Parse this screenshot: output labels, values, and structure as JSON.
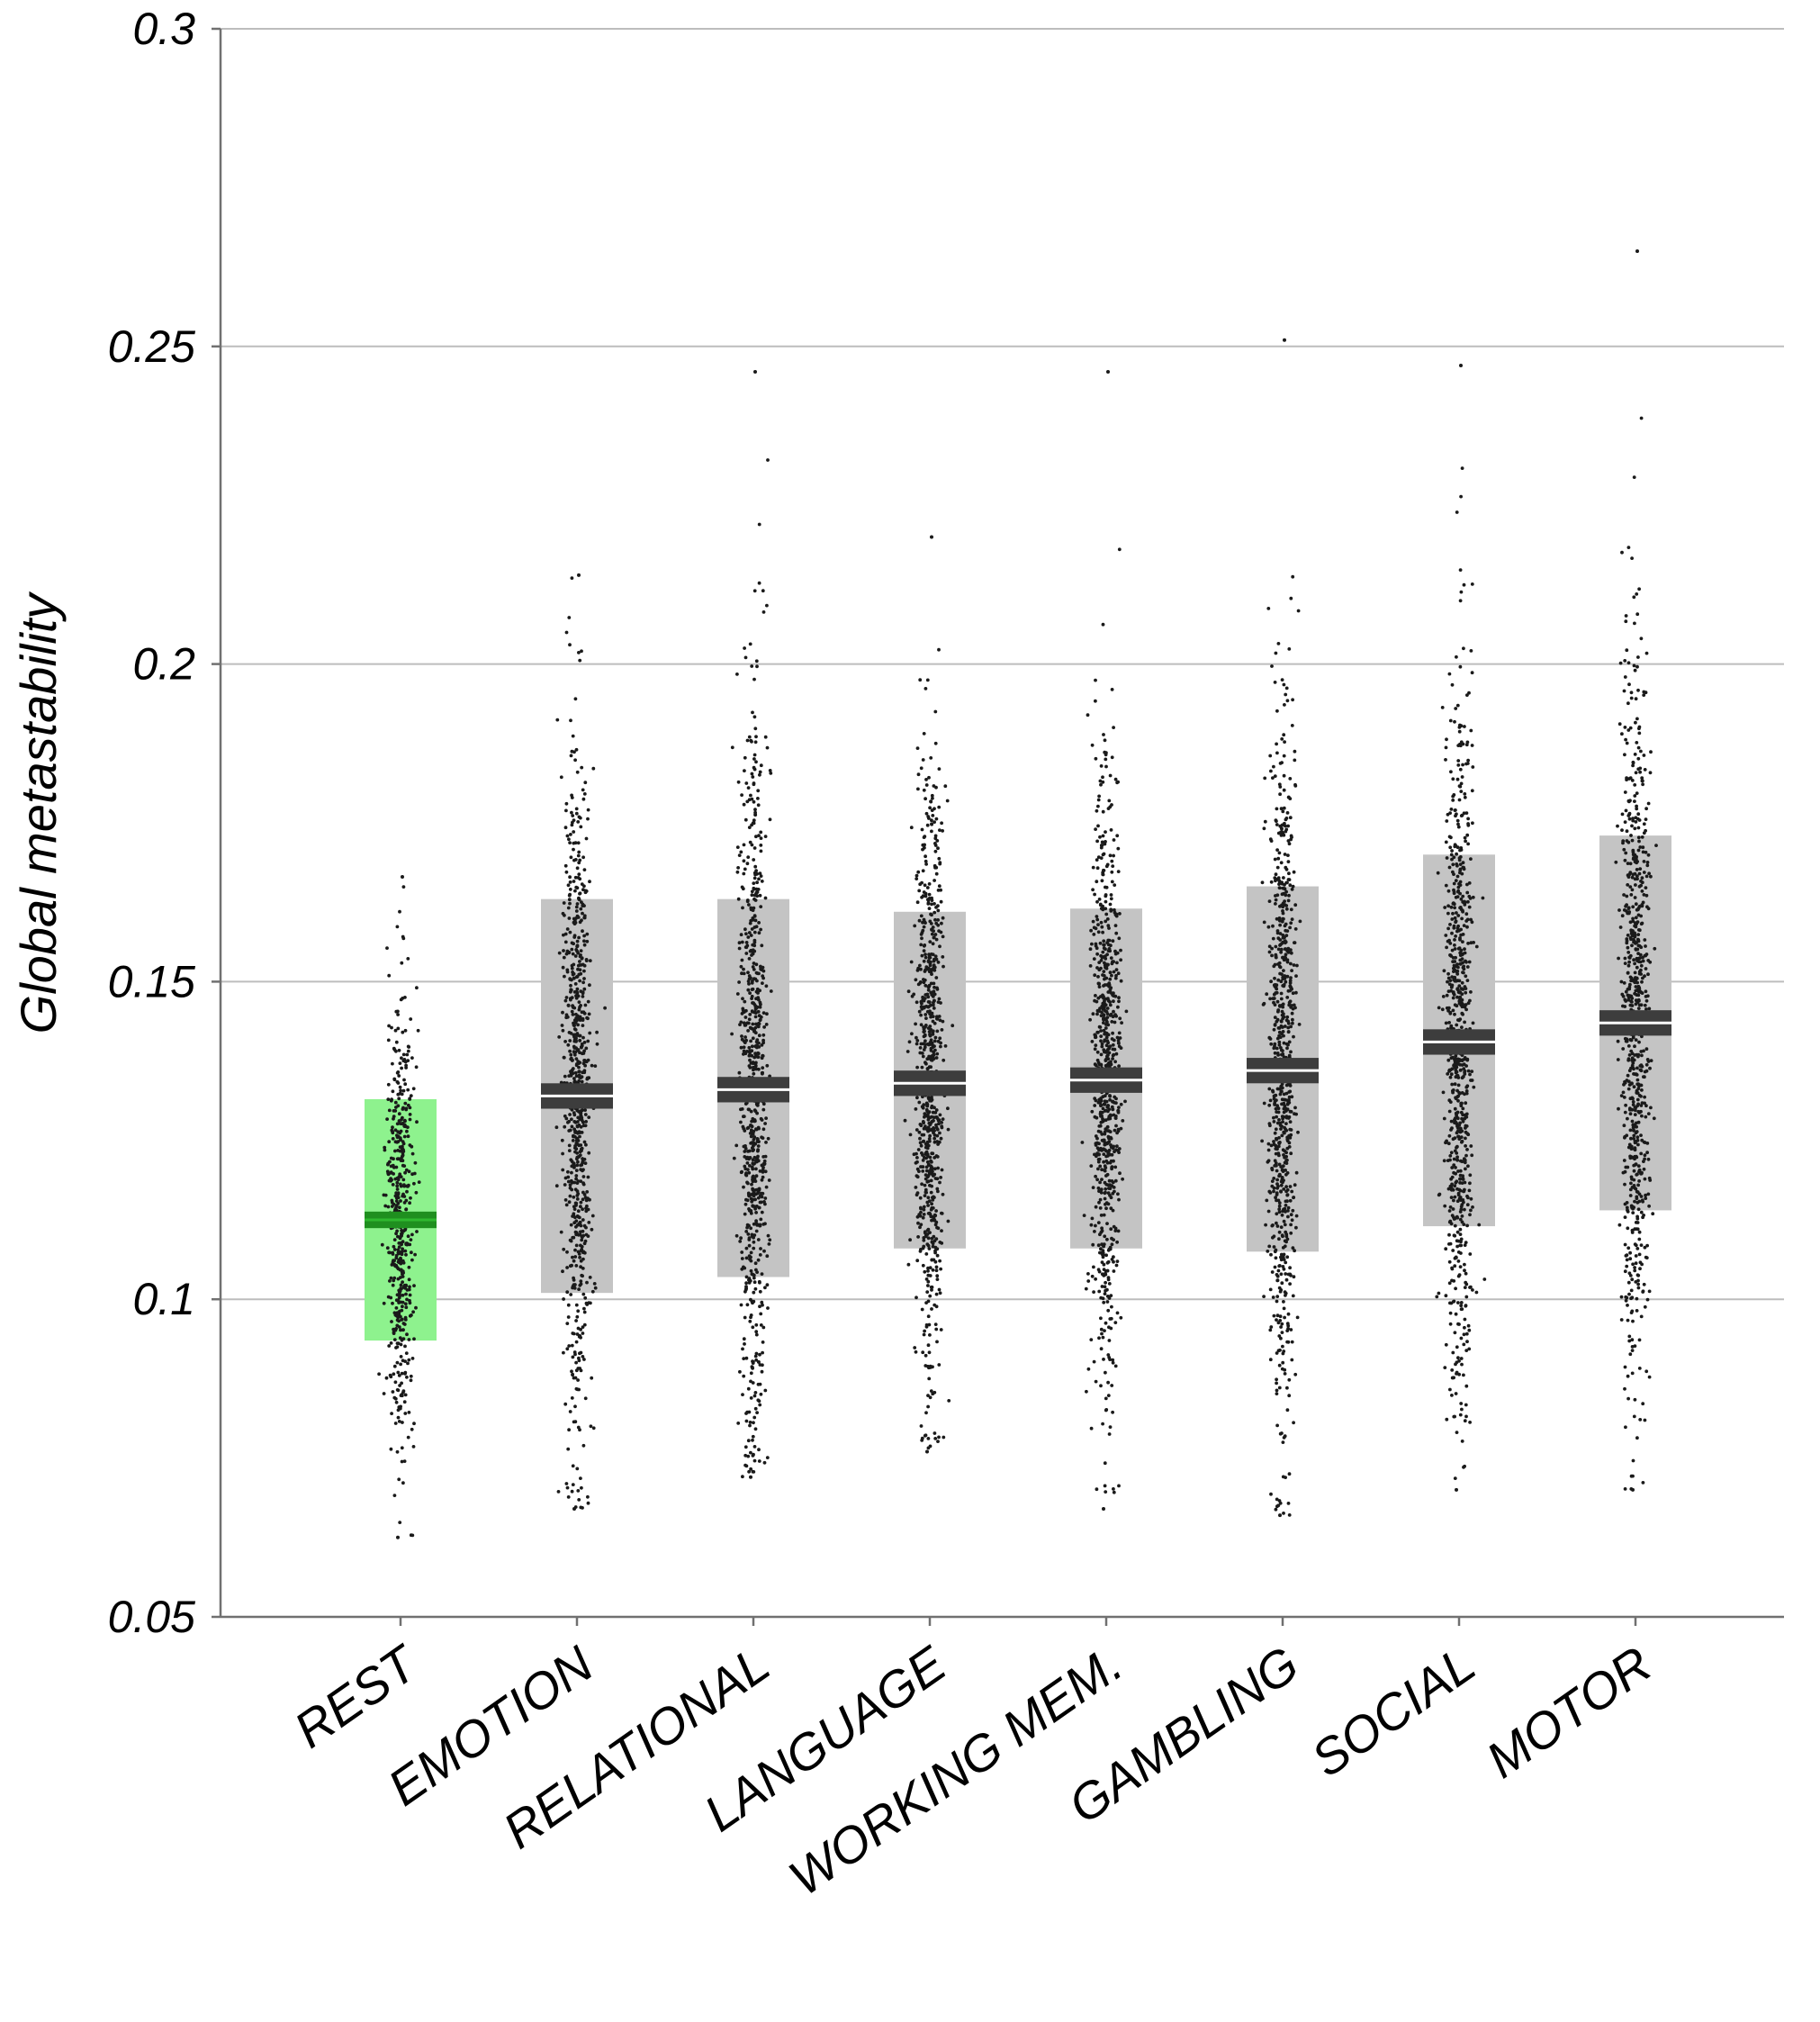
{
  "chart_data": {
    "type": "scatter",
    "title": "",
    "xlabel": "",
    "ylabel": "Global metastability",
    "ylim": [
      0.05,
      0.3
    ],
    "yticks": [
      0.05,
      0.1,
      0.15,
      0.2,
      0.25,
      0.3
    ],
    "ytick_labels": [
      "0.05",
      "0.1",
      "0.15",
      "0.2",
      "0.25",
      "0.3"
    ],
    "grid": true,
    "categories": [
      "REST",
      "EMOTION",
      "RELATIONAL",
      "LANGUAGE",
      "WORKING MEM.",
      "GAMBLING",
      "SOCIAL",
      "MOTOR"
    ],
    "series": [
      {
        "category": "REST",
        "mean": 0.1125,
        "sd_low": 0.0935,
        "sd_high": 0.1315,
        "sem_low": 0.1112,
        "sem_high": 0.1138,
        "min": 0.0625,
        "max": 0.1665,
        "color": "#8ef28e",
        "sem_color": "#1f8f1f"
      },
      {
        "category": "EMOTION",
        "mean": 0.132,
        "sd_low": 0.101,
        "sd_high": 0.163,
        "sem_low": 0.13,
        "sem_high": 0.134,
        "min": 0.067,
        "max": 0.214,
        "color": "#c4c4c4",
        "sem_color": "#3d3d3d"
      },
      {
        "category": "RELATIONAL",
        "mean": 0.133,
        "sd_low": 0.1035,
        "sd_high": 0.163,
        "sem_low": 0.131,
        "sem_high": 0.135,
        "min": 0.072,
        "max": 0.246,
        "color": "#c4c4c4",
        "sem_color": "#3d3d3d"
      },
      {
        "category": "LANGUAGE",
        "mean": 0.134,
        "sd_low": 0.108,
        "sd_high": 0.161,
        "sem_low": 0.132,
        "sem_high": 0.136,
        "min": 0.076,
        "max": 0.22,
        "color": "#c4c4c4",
        "sem_color": "#3d3d3d"
      },
      {
        "category": "WORKING MEM.",
        "mean": 0.1345,
        "sd_low": 0.108,
        "sd_high": 0.1615,
        "sem_low": 0.1325,
        "sem_high": 0.1365,
        "min": 0.067,
        "max": 0.246,
        "color": "#c4c4c4",
        "sem_color": "#3d3d3d"
      },
      {
        "category": "GAMBLING",
        "mean": 0.136,
        "sd_low": 0.1075,
        "sd_high": 0.165,
        "sem_low": 0.134,
        "sem_high": 0.138,
        "min": 0.066,
        "max": 0.251,
        "color": "#c4c4c4",
        "sem_color": "#3d3d3d"
      },
      {
        "category": "SOCIAL",
        "mean": 0.1405,
        "sd_low": 0.1115,
        "sd_high": 0.17,
        "sem_low": 0.1385,
        "sem_high": 0.1425,
        "min": 0.07,
        "max": 0.247,
        "color": "#c4c4c4",
        "sem_color": "#3d3d3d"
      },
      {
        "category": "MOTOR",
        "mean": 0.1435,
        "sd_low": 0.114,
        "sd_high": 0.173,
        "sem_low": 0.1415,
        "sem_high": 0.1455,
        "min": 0.07,
        "max": 0.265,
        "color": "#c4c4c4",
        "sem_color": "#3d3d3d"
      }
    ]
  }
}
